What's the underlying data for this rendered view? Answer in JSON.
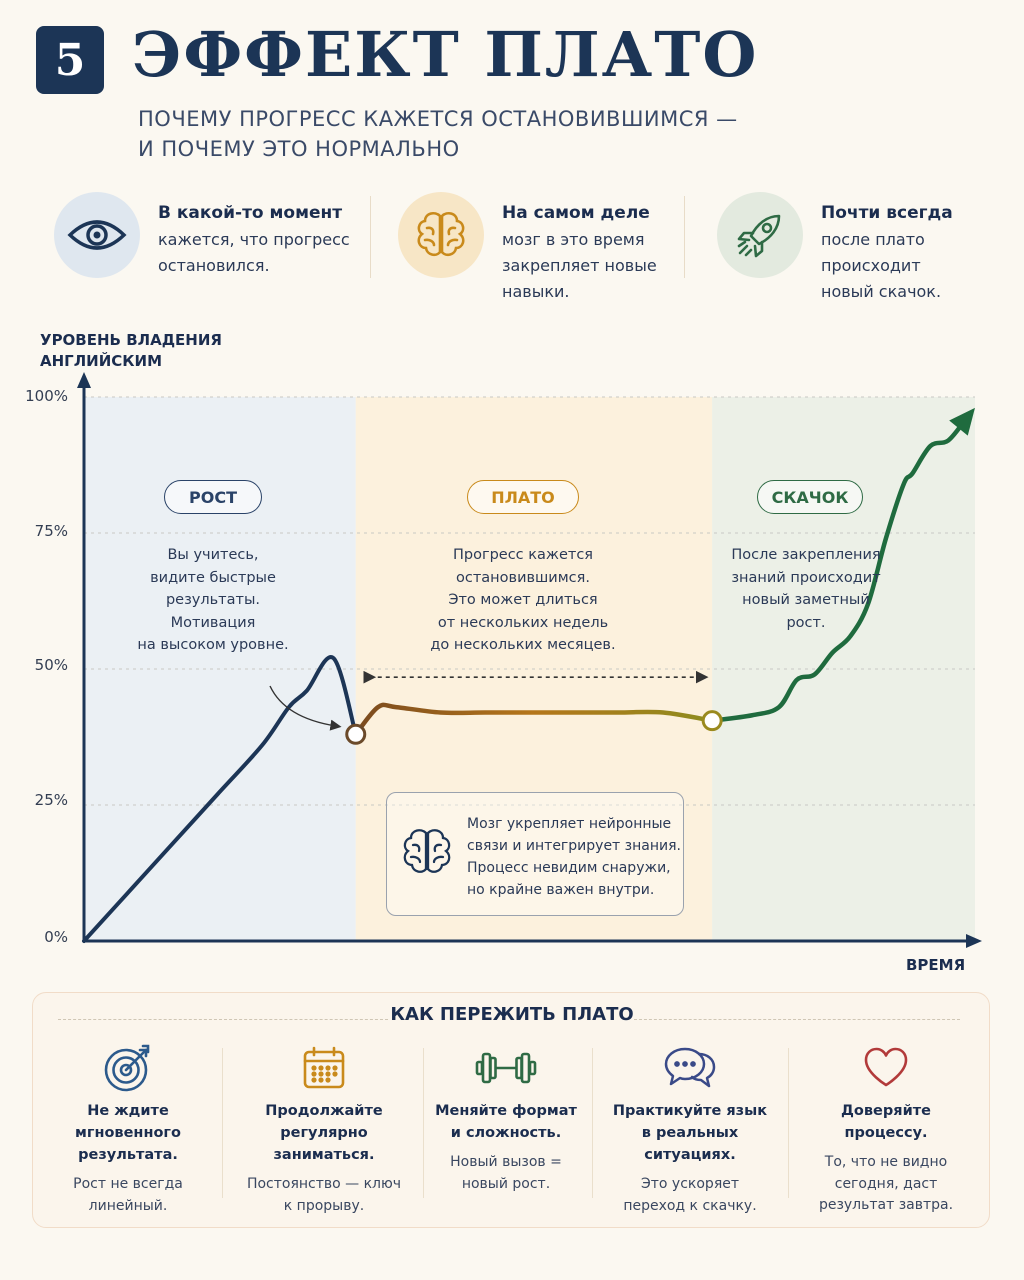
{
  "header": {
    "number": "5",
    "title": "ЭФФЕКТ ПЛАТО",
    "subtitle": [
      "ПОЧЕМУ ПРОГРЕСС КАЖЕТСЯ ОСТАНОВИВШИМСЯ —",
      "И ПОЧЕМУ ЭТО НОРМАЛЬНО"
    ]
  },
  "info_cards": [
    {
      "icon": "eye-icon",
      "title": "В какой-то момент",
      "lines": [
        "кажется, что прогресс",
        "остановился."
      ],
      "color": "#dfe7ef"
    },
    {
      "icon": "brain-icon",
      "title": "На самом деле",
      "lines": [
        "мозг в это время",
        "закрепляет новые",
        "навыки."
      ],
      "color": "#f7e6c6"
    },
    {
      "icon": "rocket-icon",
      "title": "Почти всегда",
      "lines": [
        "после плато",
        "происходит",
        "новый скачок."
      ],
      "color": "#e3eadf"
    }
  ],
  "chart": {
    "y_title": [
      "УРОВЕНЬ ВЛАДЕНИЯ",
      "АНГЛИЙСКИМ"
    ],
    "x_title": "ВРЕМЯ",
    "y_ticks": [
      "100%",
      "75%",
      "50%",
      "25%",
      "0%"
    ],
    "phases": [
      {
        "label": "РОСТ",
        "color": "#2a4368",
        "desc": [
          "Вы учитесь,",
          "видите быстрые",
          "результаты.",
          "Мотивация",
          "на высоком уровне."
        ]
      },
      {
        "label": "ПЛАТО",
        "color": "#c98a1b",
        "desc": [
          "Прогресс кажется",
          "остановившимся.",
          "Это может длиться",
          "от нескольких недель",
          "до нескольких месяцев."
        ]
      },
      {
        "label": "СКАЧОК",
        "color": "#2f6b45",
        "desc": [
          "После закрепления",
          "знаний происходит",
          "новый заметный",
          "рост."
        ]
      }
    ],
    "brain_note": [
      "Мозг укрепляет нейронные",
      "связи и интегрирует знания.",
      "Процесс невидим снаружи,",
      "но крайне важен внутри."
    ]
  },
  "chart_data": {
    "type": "line",
    "xlabel": "ВРЕМЯ",
    "ylabel": "УРОВЕНЬ ВЛАДЕНИЯ АНГЛИЙСКИМ",
    "ylim": [
      0,
      100
    ],
    "y_ticks": [
      0,
      25,
      50,
      75,
      100
    ],
    "x_ticks_shown": false,
    "grid": true,
    "x_range": [
      0,
      100
    ],
    "phases": [
      {
        "name": "РОСТ",
        "x_start": 0,
        "x_end": 30.5
      },
      {
        "name": "ПЛАТО",
        "x_start": 30.5,
        "x_end": 70.5
      },
      {
        "name": "СКАЧОК",
        "x_start": 70.5,
        "x_end": 100
      }
    ],
    "series": [
      {
        "x": [
          0,
          5,
          10,
          15,
          20,
          23,
          25,
          28,
          30.5,
          33,
          35,
          40,
          45,
          50,
          55,
          60,
          65,
          70.5,
          75,
          78,
          80,
          82,
          84,
          86,
          88,
          90,
          92,
          93,
          95,
          97,
          99
        ],
        "y": [
          0,
          9,
          18,
          27,
          36,
          43,
          46,
          52,
          38,
          43,
          43,
          42,
          42,
          42,
          42,
          42,
          42,
          40.5,
          41.5,
          43,
          48,
          49,
          53,
          56,
          62,
          74,
          84,
          86,
          91,
          92,
          96
        ]
      }
    ]
  },
  "tips": {
    "title": "КАК ПЕРЕЖИТЬ ПЛАТО",
    "items": [
      {
        "icon": "target-icon",
        "title": [
          "Не ждите мгновенного",
          "результата."
        ],
        "desc": [
          "Рост не всегда",
          "линейный."
        ]
      },
      {
        "icon": "calendar-icon",
        "title": [
          "Продолжайте регулярно",
          "заниматься."
        ],
        "desc": [
          "Постоянство — ключ",
          "к прорыву."
        ]
      },
      {
        "icon": "dumbbell-icon",
        "title": [
          "Меняйте формат",
          "и сложность."
        ],
        "desc": [
          "Новый вызов =",
          "новый рост."
        ]
      },
      {
        "icon": "chat-icon",
        "title": [
          "Практикуйте язык",
          "в реальных",
          "ситуациях."
        ],
        "desc": [
          "Это ускоряет",
          "переход к скачку."
        ]
      },
      {
        "icon": "heart-icon",
        "title": [
          "Доверяйте процессу."
        ],
        "desc": [
          "То, что не видно",
          "сегодня, даст",
          "результат завтра."
        ]
      }
    ]
  }
}
